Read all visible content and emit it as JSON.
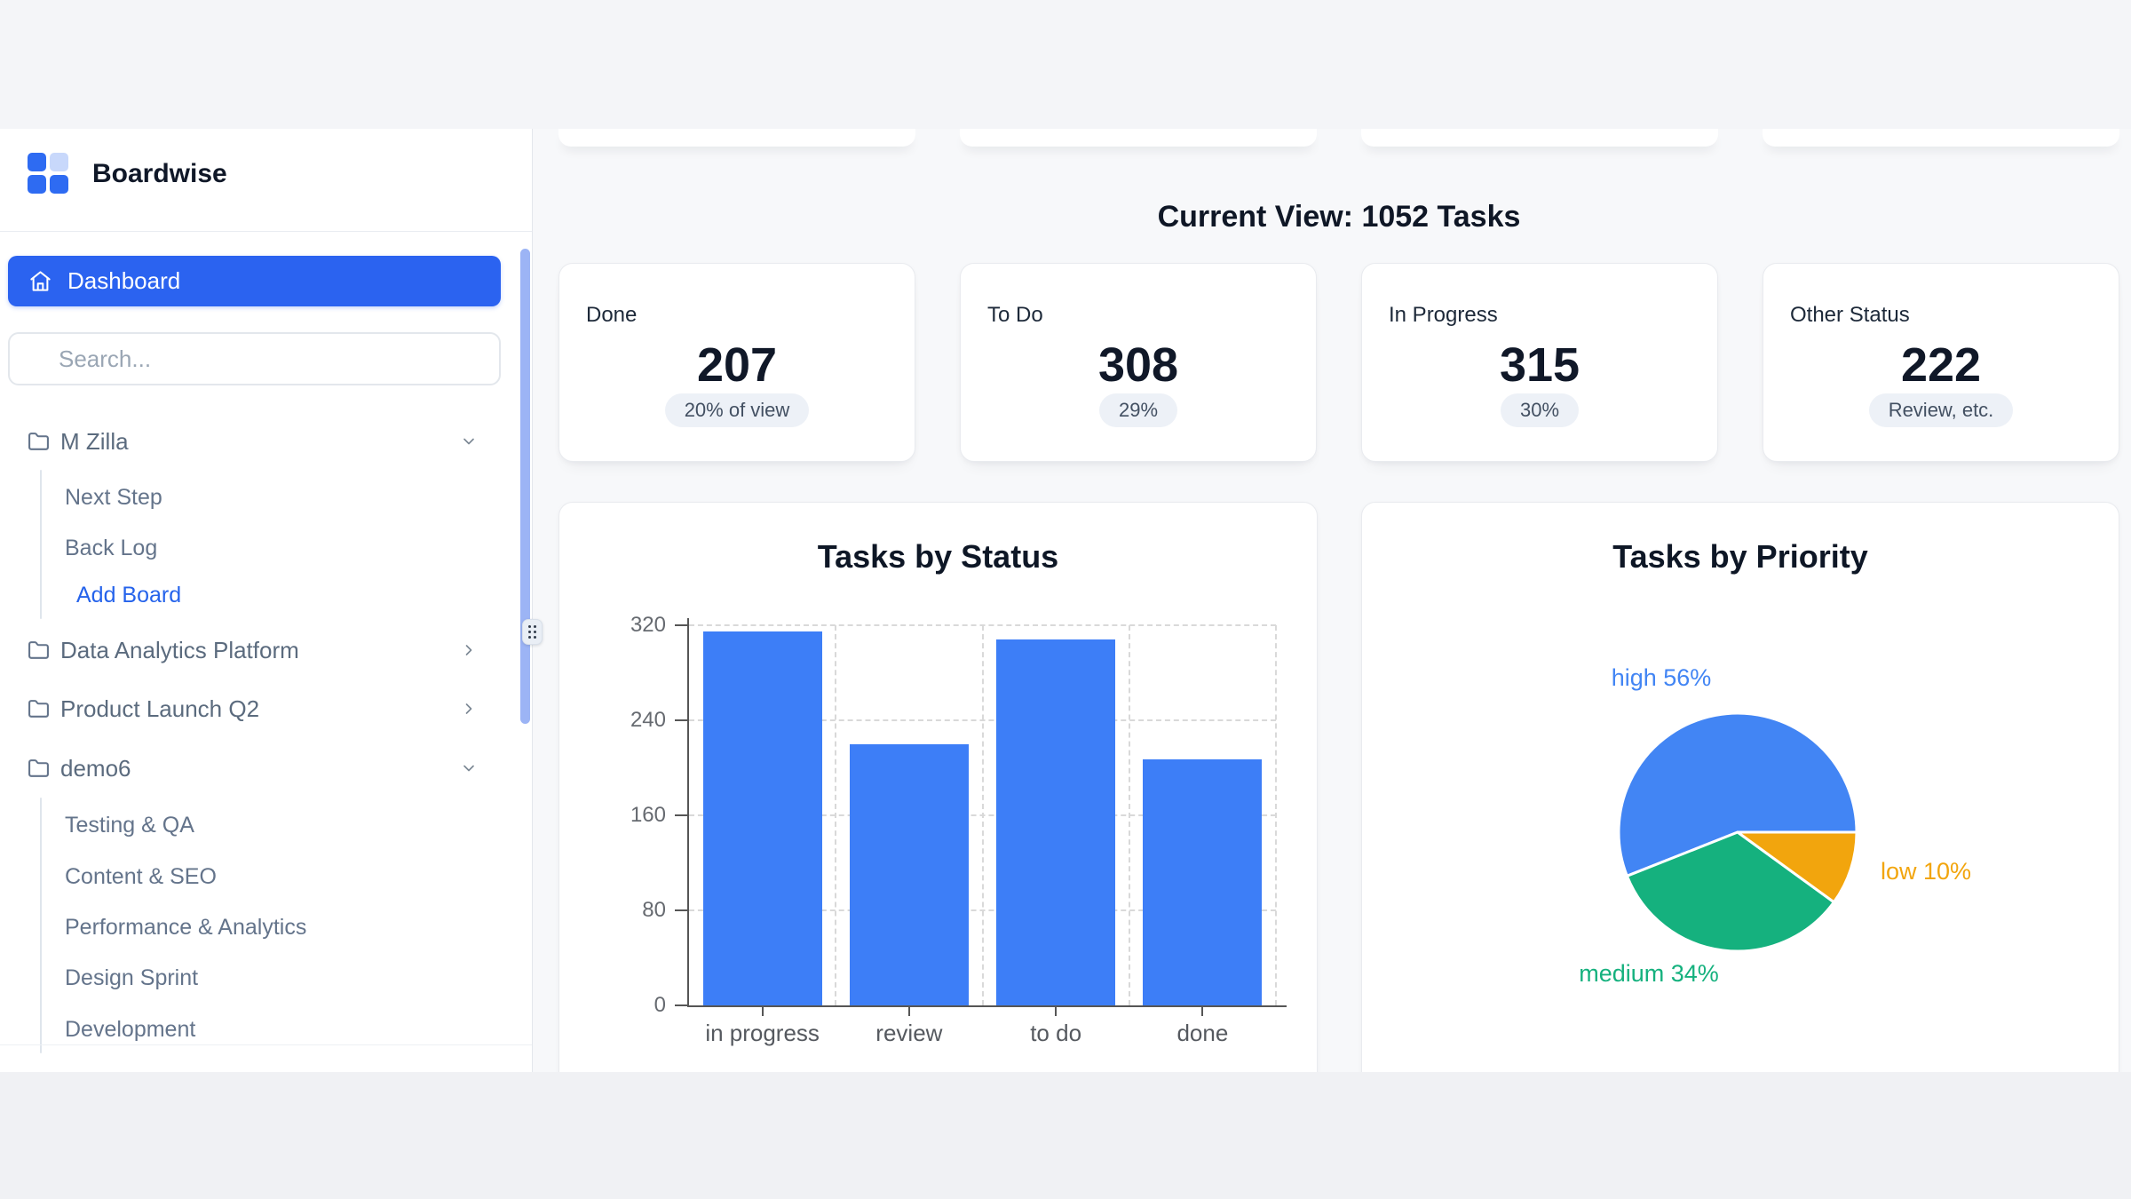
{
  "brand": {
    "name": "Boardwise"
  },
  "heading": {
    "current_view": "Current View: 1052 Tasks"
  },
  "sidebar": {
    "dashboard_label": "Dashboard",
    "search_placeholder": "Search...",
    "projects": [
      {
        "label": "M Zilla",
        "state": "expanded"
      },
      {
        "label": "Data Analytics Platform",
        "state": "collapsed"
      },
      {
        "label": "Product Launch Q2",
        "state": "collapsed"
      },
      {
        "label": "demo6",
        "state": "expanded"
      }
    ],
    "mzilla_boards": [
      "Next Step",
      "Back Log"
    ],
    "add_board_label": "Add Board",
    "demo6_boards": [
      "Testing & QA",
      "Content & SEO",
      "Performance & Analytics",
      "Design Sprint",
      "Development"
    ]
  },
  "stats": [
    {
      "label": "Done",
      "value": "207",
      "badge": "20% of view"
    },
    {
      "label": "To Do",
      "value": "308",
      "badge": "29%"
    },
    {
      "label": "In Progress",
      "value": "315",
      "badge": "30%"
    },
    {
      "label": "Other Status",
      "value": "222",
      "badge": "Review, etc."
    }
  ],
  "colors": {
    "brand_blue": "#2b63f0",
    "bar_blue": "#3d7ef7",
    "pie_blue": "#4285f4",
    "pie_green": "#15b17e",
    "pie_orange": "#f2a50d",
    "scrollbar_thumb": "#9cb4f5"
  },
  "chart_data": [
    {
      "type": "bar",
      "title": "Tasks by Status",
      "categories": [
        "in progress",
        "review",
        "to do",
        "done"
      ],
      "values": [
        315,
        220,
        308,
        207
      ],
      "yticks": [
        0,
        80,
        160,
        240,
        320
      ],
      "ylim": [
        0,
        320
      ],
      "xlabel": "",
      "ylabel": "",
      "grid": "dashed",
      "bar_color": "#3d7ef7"
    },
    {
      "type": "pie",
      "title": "Tasks by Priority",
      "slices": [
        {
          "label": "high",
          "pct": 56,
          "color": "#4285f4"
        },
        {
          "label": "medium",
          "pct": 34,
          "color": "#15b17e"
        },
        {
          "label": "low",
          "pct": 10,
          "color": "#f2a50d"
        }
      ],
      "start_angle_deg": 0,
      "direction": "counterclockwise",
      "legend_position": "outside-labels"
    }
  ]
}
